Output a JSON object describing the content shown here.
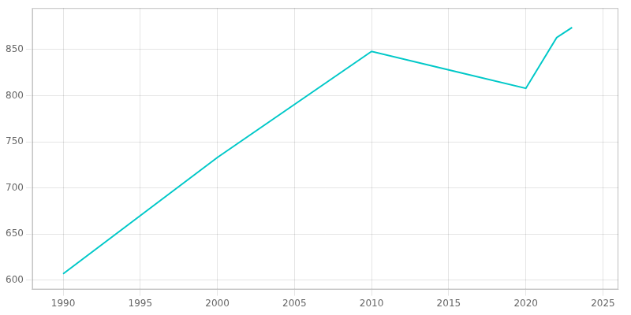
{
  "chart_data": {
    "type": "line",
    "x": [
      1990,
      2000,
      2010,
      2015,
      2020,
      2022,
      2023
    ],
    "values": [
      607,
      733,
      848,
      828,
      808,
      863,
      874
    ],
    "color": "#00C8C8",
    "xlim": [
      1988,
      2026
    ],
    "ylim": [
      590,
      895
    ],
    "xticks": [
      1990,
      1995,
      2000,
      2005,
      2010,
      2015,
      2020,
      2025
    ],
    "yticks": [
      600,
      650,
      700,
      750,
      800,
      850
    ],
    "grid": true
  }
}
